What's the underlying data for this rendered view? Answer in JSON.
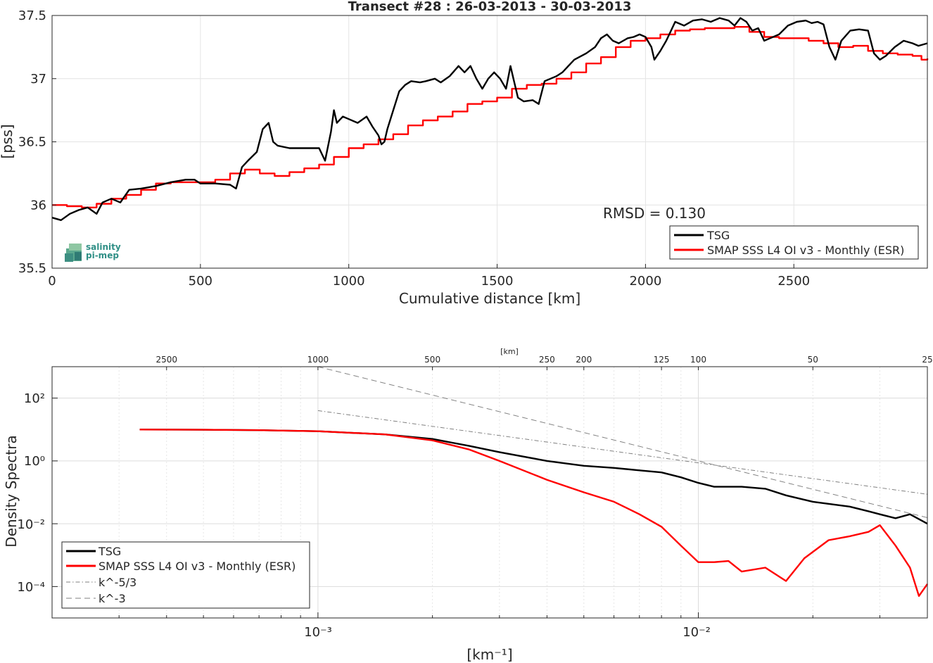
{
  "chart_data": [
    {
      "type": "line",
      "title": "Transect #28 : 26-03-2013 - 30-03-2013",
      "xlabel": "Cumulative distance [km]",
      "ylabel": "[pss]",
      "xlim": [
        0,
        2950
      ],
      "ylim": [
        35.5,
        37.5
      ],
      "x_ticks": [
        "0",
        "500",
        "1000",
        "1500",
        "2000",
        "2500"
      ],
      "y_ticks": [
        "35.5",
        "36",
        "36.5",
        "37",
        "37.5"
      ],
      "grid": true,
      "annotation": "RMSD = 0.130",
      "legend_position": "bottom-right",
      "logo_text": [
        "salinity",
        "pi-mep"
      ],
      "series": [
        {
          "name": "TSG",
          "color": "#000000",
          "points": [
            [
              0,
              35.9
            ],
            [
              30,
              35.88
            ],
            [
              60,
              35.93
            ],
            [
              90,
              35.96
            ],
            [
              120,
              35.98
            ],
            [
              150,
              35.93
            ],
            [
              170,
              36.02
            ],
            [
              200,
              36.05
            ],
            [
              230,
              36.02
            ],
            [
              260,
              36.12
            ],
            [
              300,
              36.13
            ],
            [
              350,
              36.15
            ],
            [
              400,
              36.18
            ],
            [
              450,
              36.2
            ],
            [
              480,
              36.2
            ],
            [
              500,
              36.17
            ],
            [
              550,
              36.17
            ],
            [
              600,
              36.16
            ],
            [
              620,
              36.13
            ],
            [
              640,
              36.3
            ],
            [
              660,
              36.35
            ],
            [
              690,
              36.42
            ],
            [
              710,
              36.6
            ],
            [
              730,
              36.65
            ],
            [
              745,
              36.5
            ],
            [
              760,
              36.47
            ],
            [
              800,
              36.45
            ],
            [
              850,
              36.45
            ],
            [
              900,
              36.45
            ],
            [
              920,
              36.35
            ],
            [
              940,
              36.58
            ],
            [
              950,
              36.75
            ],
            [
              960,
              36.65
            ],
            [
              980,
              36.7
            ],
            [
              1000,
              36.68
            ],
            [
              1030,
              36.65
            ],
            [
              1060,
              36.7
            ],
            [
              1080,
              36.62
            ],
            [
              1100,
              36.55
            ],
            [
              1110,
              36.48
            ],
            [
              1120,
              36.5
            ],
            [
              1130,
              36.6
            ],
            [
              1150,
              36.75
            ],
            [
              1170,
              36.9
            ],
            [
              1190,
              36.95
            ],
            [
              1210,
              36.98
            ],
            [
              1240,
              36.97
            ],
            [
              1260,
              36.98
            ],
            [
              1290,
              37.0
            ],
            [
              1310,
              36.97
            ],
            [
              1340,
              37.02
            ],
            [
              1370,
              37.1
            ],
            [
              1390,
              37.05
            ],
            [
              1410,
              37.1
            ],
            [
              1430,
              37.0
            ],
            [
              1450,
              36.92
            ],
            [
              1470,
              37.0
            ],
            [
              1490,
              37.05
            ],
            [
              1510,
              37.0
            ],
            [
              1530,
              36.92
            ],
            [
              1545,
              37.1
            ],
            [
              1555,
              37.0
            ],
            [
              1570,
              36.85
            ],
            [
              1590,
              36.82
            ],
            [
              1620,
              36.83
            ],
            [
              1640,
              36.8
            ],
            [
              1660,
              36.98
            ],
            [
              1680,
              37.0
            ],
            [
              1700,
              37.02
            ],
            [
              1720,
              37.05
            ],
            [
              1740,
              37.1
            ],
            [
              1760,
              37.15
            ],
            [
              1800,
              37.2
            ],
            [
              1830,
              37.25
            ],
            [
              1850,
              37.32
            ],
            [
              1870,
              37.35
            ],
            [
              1890,
              37.3
            ],
            [
              1910,
              37.28
            ],
            [
              1940,
              37.32
            ],
            [
              1960,
              37.33
            ],
            [
              1980,
              37.35
            ],
            [
              2000,
              37.33
            ],
            [
              2020,
              37.25
            ],
            [
              2030,
              37.15
            ],
            [
              2050,
              37.22
            ],
            [
              2070,
              37.3
            ],
            [
              2100,
              37.45
            ],
            [
              2130,
              37.42
            ],
            [
              2160,
              37.46
            ],
            [
              2190,
              37.47
            ],
            [
              2220,
              37.45
            ],
            [
              2250,
              37.48
            ],
            [
              2280,
              37.46
            ],
            [
              2300,
              37.42
            ],
            [
              2320,
              37.48
            ],
            [
              2340,
              37.45
            ],
            [
              2360,
              37.38
            ],
            [
              2380,
              37.4
            ],
            [
              2400,
              37.3
            ],
            [
              2420,
              37.32
            ],
            [
              2450,
              37.35
            ],
            [
              2480,
              37.42
            ],
            [
              2510,
              37.45
            ],
            [
              2540,
              37.46
            ],
            [
              2560,
              37.44
            ],
            [
              2580,
              37.45
            ],
            [
              2600,
              37.43
            ],
            [
              2620,
              37.25
            ],
            [
              2640,
              37.15
            ],
            [
              2660,
              37.3
            ],
            [
              2690,
              37.38
            ],
            [
              2720,
              37.39
            ],
            [
              2750,
              37.38
            ],
            [
              2770,
              37.2
            ],
            [
              2790,
              37.15
            ],
            [
              2810,
              37.18
            ],
            [
              2840,
              37.25
            ],
            [
              2870,
              37.3
            ],
            [
              2900,
              37.28
            ],
            [
              2920,
              37.26
            ],
            [
              2950,
              37.28
            ]
          ]
        },
        {
          "name": "SMAP SSS L4 OI v3 - Monthly (ESR)",
          "color": "#ff0000",
          "points": [
            [
              0,
              36.0
            ],
            [
              50,
              35.99
            ],
            [
              100,
              35.98
            ],
            [
              150,
              36.01
            ],
            [
              200,
              36.05
            ],
            [
              250,
              36.08
            ],
            [
              300,
              36.12
            ],
            [
              350,
              36.17
            ],
            [
              400,
              36.18
            ],
            [
              450,
              36.18
            ],
            [
              500,
              36.18
            ],
            [
              550,
              36.2
            ],
            [
              600,
              36.25
            ],
            [
              650,
              36.28
            ],
            [
              700,
              36.25
            ],
            [
              750,
              36.23
            ],
            [
              800,
              36.26
            ],
            [
              850,
              36.29
            ],
            [
              900,
              36.32
            ],
            [
              950,
              36.38
            ],
            [
              1000,
              36.45
            ],
            [
              1050,
              36.48
            ],
            [
              1100,
              36.52
            ],
            [
              1150,
              36.56
            ],
            [
              1200,
              36.63
            ],
            [
              1250,
              36.67
            ],
            [
              1300,
              36.7
            ],
            [
              1350,
              36.74
            ],
            [
              1400,
              36.8
            ],
            [
              1450,
              36.82
            ],
            [
              1500,
              36.85
            ],
            [
              1550,
              36.92
            ],
            [
              1600,
              36.95
            ],
            [
              1650,
              36.96
            ],
            [
              1700,
              37.0
            ],
            [
              1750,
              37.05
            ],
            [
              1800,
              37.12
            ],
            [
              1850,
              37.17
            ],
            [
              1900,
              37.25
            ],
            [
              1950,
              37.3
            ],
            [
              2000,
              37.32
            ],
            [
              2050,
              37.35
            ],
            [
              2100,
              37.38
            ],
            [
              2150,
              37.39
            ],
            [
              2200,
              37.4
            ],
            [
              2250,
              37.4
            ],
            [
              2300,
              37.41
            ],
            [
              2350,
              37.37
            ],
            [
              2400,
              37.33
            ],
            [
              2450,
              37.32
            ],
            [
              2500,
              37.32
            ],
            [
              2550,
              37.3
            ],
            [
              2600,
              37.28
            ],
            [
              2650,
              37.25
            ],
            [
              2700,
              37.26
            ],
            [
              2750,
              37.22
            ],
            [
              2800,
              37.2
            ],
            [
              2850,
              37.19
            ],
            [
              2900,
              37.18
            ],
            [
              2930,
              37.15
            ],
            [
              2950,
              37.16
            ]
          ]
        }
      ]
    },
    {
      "type": "line",
      "title": "",
      "xlabel": "[km⁻¹]",
      "ylabel": "Density Spectra",
      "x_scale": "log",
      "y_scale": "log",
      "xlim": [
        0.0002,
        0.04
      ],
      "ylim": [
        1e-05,
        1000
      ],
      "x_ticks": [
        "10⁻³",
        "10⁻²"
      ],
      "y_ticks": [
        "10⁻⁴",
        "10⁻²",
        "10⁰",
        "10²"
      ],
      "top_axis_label": "[km]",
      "top_ticks": [
        "2500",
        "1000",
        "500",
        "250",
        "200",
        "125",
        "100",
        "50",
        "25"
      ],
      "grid": true,
      "legend_position": "bottom-left",
      "series": [
        {
          "name": "TSG",
          "color": "#000000",
          "style": "solid",
          "points": [
            [
              0.00034,
              10
            ],
            [
              0.0005,
              9.8
            ],
            [
              0.0007,
              9.5
            ],
            [
              0.001,
              8.8
            ],
            [
              0.0015,
              7
            ],
            [
              0.002,
              5
            ],
            [
              0.0025,
              3
            ],
            [
              0.003,
              1.9
            ],
            [
              0.004,
              1.0
            ],
            [
              0.005,
              0.7
            ],
            [
              0.006,
              0.6
            ],
            [
              0.007,
              0.5
            ],
            [
              0.008,
              0.43
            ],
            [
              0.009,
              0.3
            ],
            [
              0.01,
              0.2
            ],
            [
              0.011,
              0.15
            ],
            [
              0.013,
              0.15
            ],
            [
              0.015,
              0.13
            ],
            [
              0.017,
              0.08
            ],
            [
              0.02,
              0.05
            ],
            [
              0.025,
              0.035
            ],
            [
              0.028,
              0.025
            ],
            [
              0.03,
              0.02
            ],
            [
              0.033,
              0.015
            ],
            [
              0.036,
              0.02
            ],
            [
              0.04,
              0.01
            ]
          ]
        },
        {
          "name": "SMAP SSS L4 OI v3 - Monthly (ESR)",
          "color": "#ff0000",
          "style": "solid",
          "points": [
            [
              0.00034,
              10
            ],
            [
              0.0005,
              9.8
            ],
            [
              0.0007,
              9.5
            ],
            [
              0.001,
              8.8
            ],
            [
              0.0015,
              7
            ],
            [
              0.002,
              4.5
            ],
            [
              0.0025,
              2.3
            ],
            [
              0.003,
              1.0
            ],
            [
              0.004,
              0.25
            ],
            [
              0.005,
              0.1
            ],
            [
              0.006,
              0.05
            ],
            [
              0.007,
              0.02
            ],
            [
              0.008,
              0.008
            ],
            [
              0.009,
              0.002
            ],
            [
              0.01,
              0.0006
            ],
            [
              0.011,
              0.0006
            ],
            [
              0.012,
              0.00065
            ],
            [
              0.013,
              0.0003
            ],
            [
              0.015,
              0.0004
            ],
            [
              0.017,
              0.00015
            ],
            [
              0.019,
              0.0008
            ],
            [
              0.022,
              0.003
            ],
            [
              0.025,
              0.004
            ],
            [
              0.028,
              0.0055
            ],
            [
              0.03,
              0.009
            ],
            [
              0.033,
              0.002
            ],
            [
              0.036,
              0.0004
            ],
            [
              0.038,
              5e-05
            ],
            [
              0.04,
              0.00012
            ]
          ]
        },
        {
          "name": "k^-5/3",
          "color": "#808080",
          "style": "dashdot",
          "points": [
            [
              0.001,
              40
            ],
            [
              0.04,
              0.0864
            ]
          ]
        },
        {
          "name": "k^-3",
          "color": "#808080",
          "style": "dashed",
          "points": [
            [
              0.001,
              1000
            ],
            [
              0.04,
              0.0156
            ]
          ]
        }
      ]
    }
  ]
}
